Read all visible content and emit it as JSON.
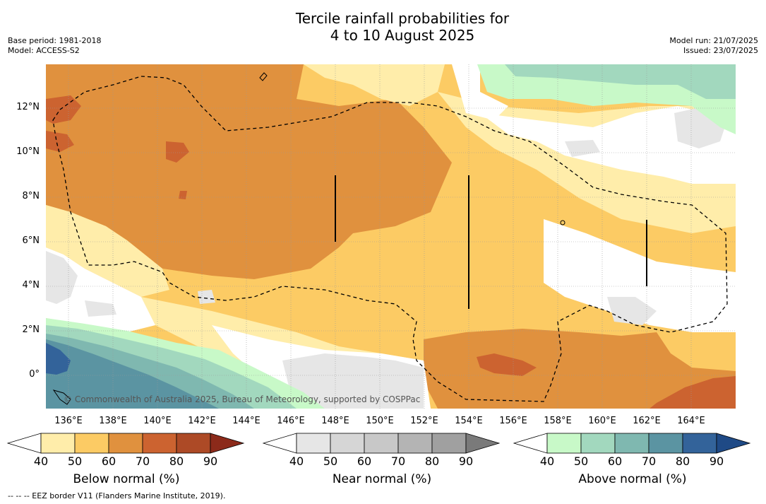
{
  "title": {
    "line1": "Tercile rainfall probabilities for",
    "line2": "4 to 10 August 2025"
  },
  "meta_left": {
    "base_period": "Base period: 1981-2018",
    "model": "Model: ACCESS-S2"
  },
  "meta_right": {
    "model_run": "Model run: 21/07/2025",
    "issued": "Issued: 23/07/2025"
  },
  "map": {
    "lon_labels": [
      "136°E",
      "138°E",
      "140°E",
      "142°E",
      "144°E",
      "146°E",
      "148°E",
      "150°E",
      "152°E",
      "154°E",
      "156°E",
      "158°E",
      "160°E",
      "162°E",
      "164°E"
    ],
    "lat_labels": [
      "12°N",
      "10°N",
      "8°N",
      "6°N",
      "4°N",
      "2°N",
      "0°"
    ],
    "copyright": "© Commonwealth of Australia 2025, Bureau of Meteorology, supported by COSPPac"
  },
  "colorbars": [
    {
      "label": "Below normal (%)",
      "ticks": [
        "40",
        "50",
        "60",
        "70",
        "80",
        "90"
      ],
      "colors": [
        "#ffedaa",
        "#fccb64",
        "#e0913e",
        "#cc6330",
        "#ad4a26",
        "#8c2a1a"
      ]
    },
    {
      "label": "Near normal (%)",
      "ticks": [
        "40",
        "50",
        "60",
        "70",
        "80",
        "90"
      ],
      "colors": [
        "#e6e6e6",
        "#d6d6d6",
        "#c8c8c8",
        "#b4b4b4",
        "#a0a0a0",
        "#7a7a7a"
      ]
    },
    {
      "label": "Above normal (%)",
      "ticks": [
        "40",
        "50",
        "60",
        "70",
        "80",
        "90"
      ],
      "colors": [
        "#c8f9c8",
        "#a2d8be",
        "#7fb8b0",
        "#5b94a2",
        "#33639a",
        "#1f4a86"
      ]
    }
  ],
  "footnote": "-- -- -- EEZ border V11 (Flanders Marine Institute, 2019)."
}
